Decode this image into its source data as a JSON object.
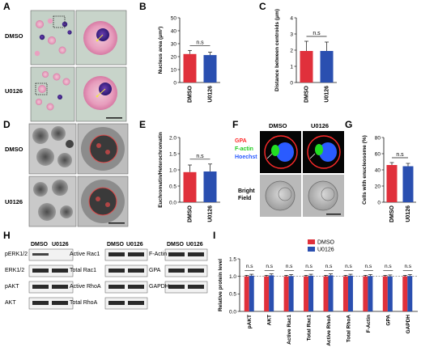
{
  "panels": {
    "A": "A",
    "B": "B",
    "C": "C",
    "D": "D",
    "E": "E",
    "F": "F",
    "G": "G",
    "H": "H",
    "I": "I"
  },
  "row_labels": {
    "dmso": "DMSO",
    "u0126": "U0126"
  },
  "panel_f": {
    "labels": {
      "gpa": "GPA",
      "factin": "F-actin",
      "hoechst": "Hoechst",
      "bright_field": "Bright Field"
    },
    "colors": {
      "gpa": "#ff2a2a",
      "factin": "#22dd22",
      "hoechst": "#2a5bff"
    }
  },
  "colors": {
    "dmso": "#e0303b",
    "u0126": "#2a4fb0"
  },
  "chart_data": [
    {
      "id": "B",
      "type": "bar",
      "categories": [
        "DMSO",
        "U0126"
      ],
      "values": [
        22,
        21.2
      ],
      "errors": [
        2.8,
        2.2
      ],
      "ylabel": "Nucleus area (μm²)",
      "ylim": [
        0,
        50
      ],
      "yticks": [
        0,
        10,
        20,
        30,
        40,
        50
      ],
      "annotation": "n.s"
    },
    {
      "id": "C",
      "type": "bar",
      "categories": [
        "DMSO",
        "U0126"
      ],
      "values": [
        1.95,
        1.95
      ],
      "errors": [
        0.6,
        0.55
      ],
      "ylabel": "Distance between centroids (μm)",
      "ylim": [
        0,
        4
      ],
      "yticks": [
        0,
        1,
        2,
        3,
        4
      ],
      "annotation": "n.s"
    },
    {
      "id": "E",
      "type": "bar",
      "categories": [
        "DMSO",
        "U0126"
      ],
      "values": [
        0.93,
        0.95
      ],
      "errors": [
        0.22,
        0.23
      ],
      "ylabel": "Euchromatin/Heterochromatin",
      "ylim": [
        0,
        2.0
      ],
      "yticks": [
        "0.0",
        "0.5",
        "1.0",
        "1.5",
        "2.0"
      ],
      "annotation": "n.s"
    },
    {
      "id": "G",
      "type": "bar",
      "categories": [
        "DMSO",
        "U0126"
      ],
      "values": [
        46,
        44.5
      ],
      "errors": [
        3,
        3.5
      ],
      "ylabel": "Cells with enucleosome (%)",
      "ylim": [
        0,
        80
      ],
      "yticks": [
        0,
        20,
        40,
        60,
        80
      ],
      "annotation": "n.s"
    },
    {
      "id": "I",
      "type": "bar",
      "categories": [
        "pAKT",
        "AKT",
        "Active Rac1",
        "Total Rac1",
        "Active RhoA",
        "Total RhoA",
        "F-Actin",
        "GPA",
        "GAPDH"
      ],
      "series": [
        {
          "name": "DMSO",
          "values": [
            1,
            1,
            1,
            1,
            1,
            1,
            1,
            1,
            1
          ],
          "errors": [
            0.03,
            0.03,
            0.03,
            0.03,
            0.03,
            0.03,
            0.03,
            0.03,
            0.03
          ]
        },
        {
          "name": "U0126",
          "values": [
            1.02,
            1.03,
            1.01,
            1.02,
            1.03,
            1.02,
            1.01,
            1.0,
            1.01
          ],
          "errors": [
            0.04,
            0.04,
            0.04,
            0.04,
            0.04,
            0.04,
            0.04,
            0.04,
            0.04
          ]
        }
      ],
      "ylabel": "Relative protein level",
      "ylim": [
        0,
        1.5
      ],
      "yticks": [
        "0.0",
        "0.5",
        "1.0",
        "1.5"
      ],
      "annotation": "n.s",
      "legend": "top-center"
    }
  ],
  "blots": {
    "header_dmso": "DMSO",
    "header_u0126": "U0126",
    "group1": [
      "pERK1/2",
      "ERK1/2",
      "pAKT",
      "AKT"
    ],
    "group2": [
      "Active Rac1",
      "Total Rac1",
      "Active RhoA",
      "Total RhoA"
    ],
    "group3": [
      "F-Actin",
      "GPA",
      "GAPDH"
    ]
  }
}
